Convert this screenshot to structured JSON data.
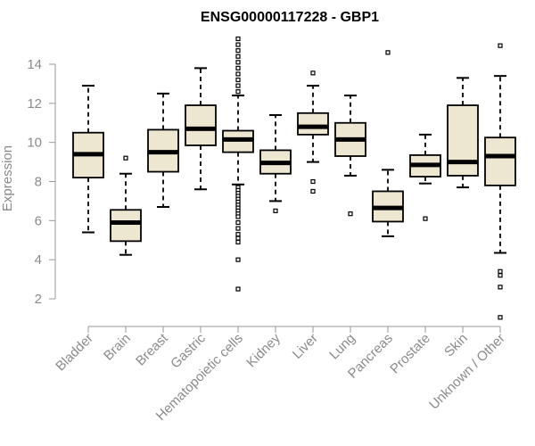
{
  "chart_data": {
    "type": "boxplot",
    "title": "ENSG00000117228 - GBP1",
    "ylabel": "Expression",
    "xlabel": "",
    "ylim": [
      1,
      15.5
    ],
    "yticks": [
      "2",
      "4",
      "6",
      "8",
      "10",
      "12",
      "14"
    ],
    "grid": false,
    "box_fill": "#ede6d0",
    "box_stroke": "#000000",
    "categories": [
      "Bladder",
      "Brain",
      "Breast",
      "Gastric",
      "Hematopoietic cells",
      "Kidney",
      "Liver",
      "Lung",
      "Pancreas",
      "Prostate",
      "Skin",
      "Unknown / Other"
    ],
    "boxes": [
      {
        "whisker_low": 5.4,
        "q1": 8.2,
        "median": 9.4,
        "q3": 10.5,
        "whisker_high": 12.9,
        "outliers": []
      },
      {
        "whisker_low": 4.25,
        "q1": 4.95,
        "median": 5.9,
        "q3": 6.55,
        "whisker_high": 8.4,
        "outliers": [
          9.2
        ]
      },
      {
        "whisker_low": 6.7,
        "q1": 8.5,
        "median": 9.5,
        "q3": 10.65,
        "whisker_high": 12.5,
        "outliers": []
      },
      {
        "whisker_low": 7.6,
        "q1": 9.85,
        "median": 10.7,
        "q3": 11.9,
        "whisker_high": 13.8,
        "outliers": []
      },
      {
        "whisker_low": 7.85,
        "q1": 9.5,
        "median": 10.15,
        "q3": 10.6,
        "whisker_high": 12.4,
        "outliers": [
          15.3,
          15.0,
          14.7,
          14.4,
          14.1,
          13.8,
          13.5,
          13.2,
          12.9,
          12.6,
          7.7,
          7.55,
          7.4,
          7.25,
          7.1,
          6.95,
          6.8,
          6.65,
          6.5,
          6.35,
          6.2,
          5.9,
          5.6,
          5.3,
          5.1,
          4.9,
          4.0,
          2.5
        ]
      },
      {
        "whisker_low": 7.0,
        "q1": 8.4,
        "median": 8.95,
        "q3": 9.6,
        "whisker_high": 11.4,
        "outliers": [
          6.5
        ]
      },
      {
        "whisker_low": 9.0,
        "q1": 10.4,
        "median": 10.8,
        "q3": 11.5,
        "whisker_high": 12.9,
        "outliers": [
          13.55,
          8.0,
          7.5
        ]
      },
      {
        "whisker_low": 8.3,
        "q1": 9.3,
        "median": 10.15,
        "q3": 11.0,
        "whisker_high": 12.4,
        "outliers": [
          6.35
        ]
      },
      {
        "whisker_low": 5.2,
        "q1": 5.95,
        "median": 6.65,
        "q3": 7.5,
        "whisker_high": 8.6,
        "outliers": [
          14.6
        ]
      },
      {
        "whisker_low": 7.9,
        "q1": 8.25,
        "median": 8.85,
        "q3": 9.35,
        "whisker_high": 10.4,
        "outliers": [
          6.1
        ]
      },
      {
        "whisker_low": 7.7,
        "q1": 8.3,
        "median": 9.0,
        "q3": 11.9,
        "whisker_high": 13.3,
        "outliers": []
      },
      {
        "whisker_low": 4.35,
        "q1": 7.8,
        "median": 9.3,
        "q3": 10.25,
        "whisker_high": 13.4,
        "outliers": [
          14.95,
          3.4,
          3.2,
          2.6,
          1.05
        ]
      }
    ]
  }
}
